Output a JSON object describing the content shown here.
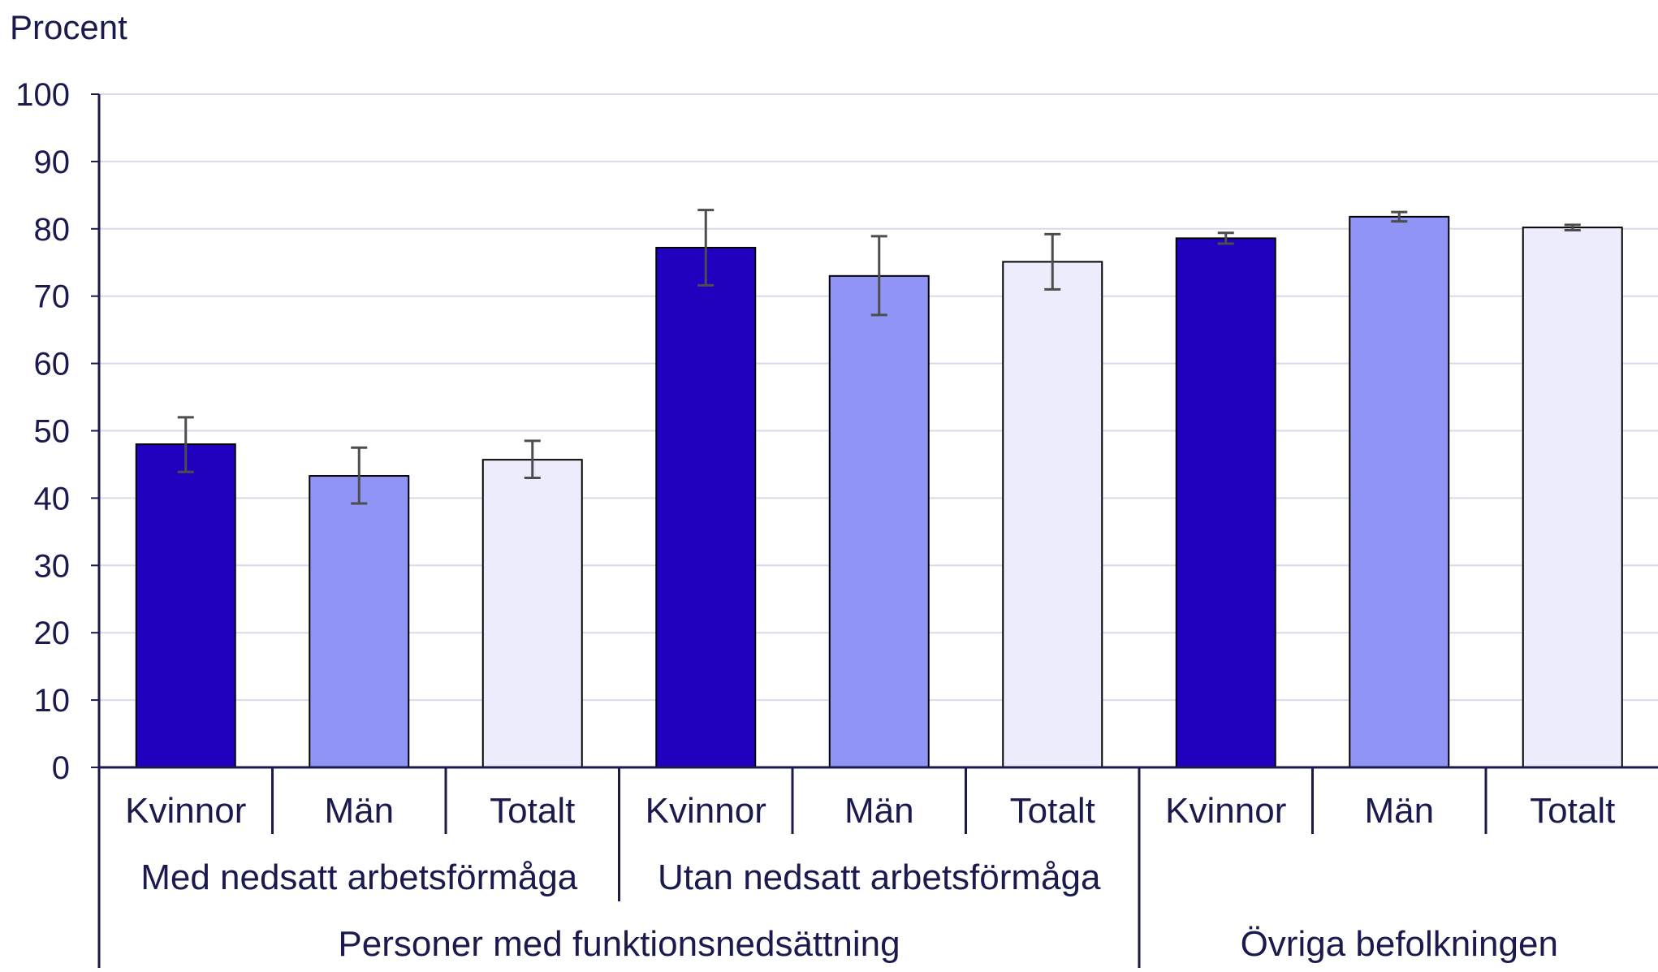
{
  "chart_data": {
    "type": "bar",
    "ylabel": "Procent",
    "ylim": [
      0,
      100
    ],
    "yticks": [
      0,
      10,
      20,
      30,
      40,
      50,
      60,
      70,
      80,
      90,
      100
    ],
    "grid": true,
    "categories": [
      "Kvinnor",
      "Män",
      "Totalt",
      "Kvinnor",
      "Män",
      "Totalt",
      "Kvinnor",
      "Män",
      "Totalt"
    ],
    "values": [
      48.0,
      43.3,
      45.7,
      77.2,
      73.0,
      75.1,
      78.6,
      81.8,
      80.2
    ],
    "error_low": [
      43.9,
      39.2,
      43.0,
      71.6,
      67.2,
      71.0,
      77.8,
      81.1,
      79.8
    ],
    "error_high": [
      52.0,
      47.5,
      48.5,
      82.8,
      78.9,
      79.2,
      79.4,
      82.5,
      80.6
    ],
    "colors": [
      "#2200c0",
      "#8f94f5",
      "#ececfd",
      "#2200c0",
      "#8f94f5",
      "#ececfd",
      "#2200c0",
      "#8f94f5",
      "#ececfd"
    ],
    "group_labels_level1": [
      {
        "label": "Med nedsatt arbetsförmåga",
        "start": 0,
        "end": 2
      },
      {
        "label": "Utan nedsatt arbetsförmåga",
        "start": 3,
        "end": 5
      }
    ],
    "group_labels_level2": [
      {
        "label": "Personer med funktionsnedsättning",
        "start": 0,
        "end": 5
      },
      {
        "label": "Övriga befolkningen",
        "start": 6,
        "end": 8
      }
    ]
  }
}
